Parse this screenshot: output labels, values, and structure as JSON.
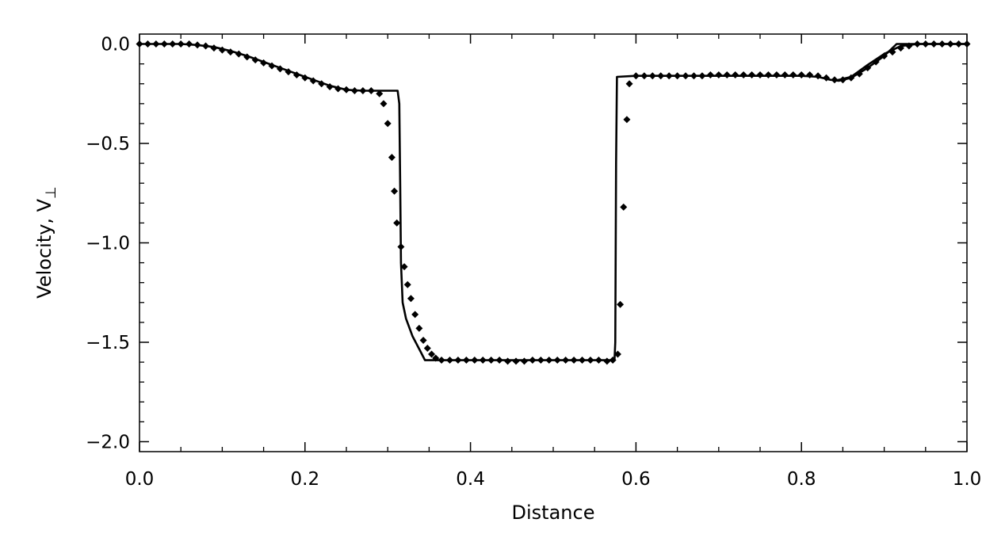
{
  "chart_data": {
    "type": "line",
    "title": "",
    "xlabel": "Distance",
    "ylabel": "Velocity, V",
    "ylabel_subscript": "⊥",
    "xlim": [
      0.0,
      1.0
    ],
    "ylim": [
      -2.05,
      0.05
    ],
    "x_ticks": [
      0.0,
      0.2,
      0.4,
      0.6,
      0.8,
      1.0
    ],
    "x_tick_labels": [
      "0.0",
      "0.2",
      "0.4",
      "0.6",
      "0.8",
      "1.0"
    ],
    "y_ticks": [
      0.0,
      -0.5,
      -1.0,
      -1.5,
      -2.0
    ],
    "y_tick_labels": [
      "0.0",
      "−0.5",
      "−1.0",
      "−1.5",
      "−2.0"
    ],
    "grid": false,
    "legend": "none",
    "series": [
      {
        "style": "solid-line",
        "color": "#000000",
        "points": [
          [
            0.0,
            0.0
          ],
          [
            0.05,
            0.0
          ],
          [
            0.07,
            -0.005
          ],
          [
            0.09,
            -0.015
          ],
          [
            0.11,
            -0.035
          ],
          [
            0.13,
            -0.06
          ],
          [
            0.15,
            -0.09
          ],
          [
            0.17,
            -0.12
          ],
          [
            0.19,
            -0.15
          ],
          [
            0.21,
            -0.18
          ],
          [
            0.23,
            -0.21
          ],
          [
            0.25,
            -0.23
          ],
          [
            0.27,
            -0.235
          ],
          [
            0.3,
            -0.235
          ],
          [
            0.312,
            -0.235
          ],
          [
            0.314,
            -0.3
          ],
          [
            0.315,
            -0.7
          ],
          [
            0.316,
            -1.1
          ],
          [
            0.318,
            -1.3
          ],
          [
            0.322,
            -1.38
          ],
          [
            0.33,
            -1.47
          ],
          [
            0.34,
            -1.55
          ],
          [
            0.345,
            -1.59
          ],
          [
            0.36,
            -1.59
          ],
          [
            0.45,
            -1.59
          ],
          [
            0.574,
            -1.59
          ],
          [
            0.575,
            -1.5
          ],
          [
            0.576,
            -0.6
          ],
          [
            0.577,
            -0.165
          ],
          [
            0.6,
            -0.16
          ],
          [
            0.7,
            -0.16
          ],
          [
            0.8,
            -0.16
          ],
          [
            0.82,
            -0.165
          ],
          [
            0.835,
            -0.18
          ],
          [
            0.845,
            -0.185
          ],
          [
            0.86,
            -0.17
          ],
          [
            0.88,
            -0.12
          ],
          [
            0.9,
            -0.06
          ],
          [
            0.915,
            0.0
          ],
          [
            1.0,
            0.0
          ]
        ]
      },
      {
        "style": "solid-line",
        "color": "#000000",
        "points": [
          [
            0.84,
            -0.185
          ],
          [
            0.86,
            -0.165
          ],
          [
            0.88,
            -0.105
          ],
          [
            0.9,
            -0.05
          ],
          [
            0.92,
            -0.01
          ],
          [
            0.94,
            0.0
          ],
          [
            1.0,
            0.0
          ]
        ]
      },
      {
        "style": "diamond-markers",
        "color": "#000000",
        "points": [
          [
            0.0,
            0.0
          ],
          [
            0.01,
            0.0
          ],
          [
            0.02,
            0.0
          ],
          [
            0.03,
            0.0
          ],
          [
            0.04,
            0.0
          ],
          [
            0.05,
            0.0
          ],
          [
            0.06,
            0.0
          ],
          [
            0.07,
            -0.005
          ],
          [
            0.08,
            -0.01
          ],
          [
            0.09,
            -0.02
          ],
          [
            0.1,
            -0.03
          ],
          [
            0.11,
            -0.04
          ],
          [
            0.12,
            -0.05
          ],
          [
            0.13,
            -0.065
          ],
          [
            0.14,
            -0.08
          ],
          [
            0.15,
            -0.095
          ],
          [
            0.16,
            -0.11
          ],
          [
            0.17,
            -0.125
          ],
          [
            0.18,
            -0.14
          ],
          [
            0.19,
            -0.155
          ],
          [
            0.2,
            -0.17
          ],
          [
            0.21,
            -0.185
          ],
          [
            0.22,
            -0.2
          ],
          [
            0.23,
            -0.215
          ],
          [
            0.24,
            -0.225
          ],
          [
            0.25,
            -0.23
          ],
          [
            0.26,
            -0.235
          ],
          [
            0.27,
            -0.235
          ],
          [
            0.28,
            -0.235
          ],
          [
            0.29,
            -0.25
          ],
          [
            0.295,
            -0.3
          ],
          [
            0.3,
            -0.4
          ],
          [
            0.305,
            -0.57
          ],
          [
            0.308,
            -0.74
          ],
          [
            0.311,
            -0.9
          ],
          [
            0.316,
            -1.02
          ],
          [
            0.32,
            -1.12
          ],
          [
            0.324,
            -1.21
          ],
          [
            0.328,
            -1.28
          ],
          [
            0.333,
            -1.36
          ],
          [
            0.338,
            -1.43
          ],
          [
            0.343,
            -1.49
          ],
          [
            0.348,
            -1.53
          ],
          [
            0.353,
            -1.56
          ],
          [
            0.358,
            -1.58
          ],
          [
            0.365,
            -1.59
          ],
          [
            0.375,
            -1.59
          ],
          [
            0.385,
            -1.59
          ],
          [
            0.395,
            -1.59
          ],
          [
            0.405,
            -1.59
          ],
          [
            0.415,
            -1.59
          ],
          [
            0.425,
            -1.59
          ],
          [
            0.435,
            -1.59
          ],
          [
            0.445,
            -1.595
          ],
          [
            0.455,
            -1.595
          ],
          [
            0.465,
            -1.595
          ],
          [
            0.475,
            -1.59
          ],
          [
            0.485,
            -1.59
          ],
          [
            0.495,
            -1.59
          ],
          [
            0.505,
            -1.59
          ],
          [
            0.515,
            -1.59
          ],
          [
            0.525,
            -1.59
          ],
          [
            0.535,
            -1.59
          ],
          [
            0.545,
            -1.59
          ],
          [
            0.555,
            -1.59
          ],
          [
            0.565,
            -1.595
          ],
          [
            0.572,
            -1.59
          ],
          [
            0.578,
            -1.56
          ],
          [
            0.581,
            -1.31
          ],
          [
            0.585,
            -0.82
          ],
          [
            0.589,
            -0.38
          ],
          [
            0.592,
            -0.2
          ],
          [
            0.6,
            -0.16
          ],
          [
            0.61,
            -0.16
          ],
          [
            0.62,
            -0.16
          ],
          [
            0.63,
            -0.16
          ],
          [
            0.64,
            -0.16
          ],
          [
            0.65,
            -0.16
          ],
          [
            0.66,
            -0.16
          ],
          [
            0.67,
            -0.16
          ],
          [
            0.68,
            -0.16
          ],
          [
            0.69,
            -0.155
          ],
          [
            0.7,
            -0.155
          ],
          [
            0.71,
            -0.155
          ],
          [
            0.72,
            -0.155
          ],
          [
            0.73,
            -0.155
          ],
          [
            0.74,
            -0.155
          ],
          [
            0.75,
            -0.155
          ],
          [
            0.76,
            -0.155
          ],
          [
            0.77,
            -0.155
          ],
          [
            0.78,
            -0.155
          ],
          [
            0.79,
            -0.155
          ],
          [
            0.8,
            -0.155
          ],
          [
            0.81,
            -0.155
          ],
          [
            0.82,
            -0.16
          ],
          [
            0.83,
            -0.17
          ],
          [
            0.84,
            -0.18
          ],
          [
            0.85,
            -0.18
          ],
          [
            0.86,
            -0.17
          ],
          [
            0.87,
            -0.15
          ],
          [
            0.88,
            -0.12
          ],
          [
            0.89,
            -0.09
          ],
          [
            0.9,
            -0.06
          ],
          [
            0.91,
            -0.04
          ],
          [
            0.92,
            -0.02
          ],
          [
            0.93,
            -0.01
          ],
          [
            0.94,
            0.0
          ],
          [
            0.95,
            0.0
          ],
          [
            0.96,
            0.0
          ],
          [
            0.97,
            0.0
          ],
          [
            0.98,
            0.0
          ],
          [
            0.99,
            0.0
          ],
          [
            1.0,
            0.0
          ]
        ]
      }
    ]
  }
}
